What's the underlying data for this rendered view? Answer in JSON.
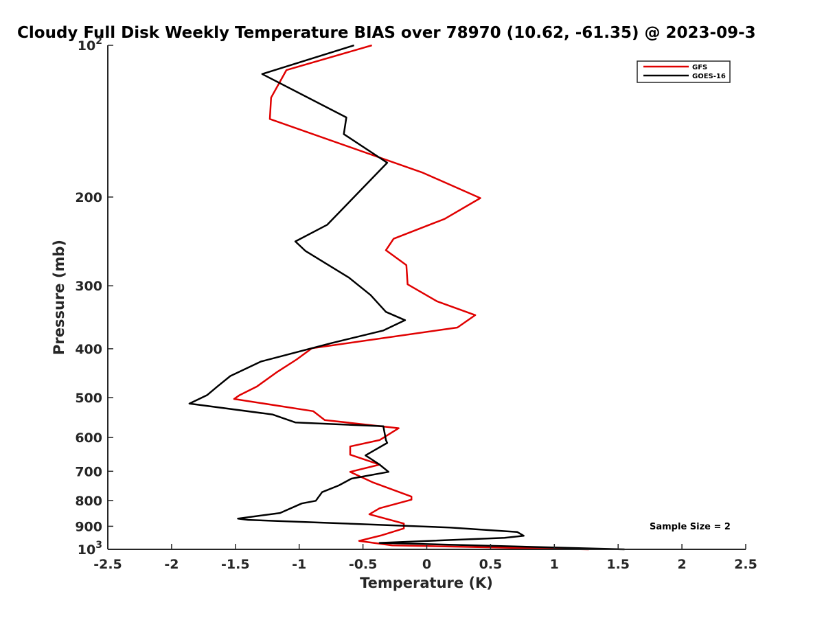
{
  "chart_data": {
    "type": "line",
    "title": "Cloudy Full Disk Weekly Temperature BIAS over 78970 (10.62, -61.35) @ 2023-09-3",
    "xlabel": "Temperature (K)",
    "ylabel": "Pressure (mb)",
    "xlim": [
      -2.5,
      2.5
    ],
    "ylim": [
      100,
      1000
    ],
    "y_scale": "log",
    "y_reversed": true,
    "x_ticks": [
      "-2.5",
      "-2",
      "-1.5",
      "-1",
      "-0.5",
      "0",
      "0.5",
      "1",
      "1.5",
      "2",
      "2.5"
    ],
    "y_ticks": [
      {
        "value": 100,
        "base": "10",
        "exp": "2"
      },
      {
        "value": 200,
        "label": "200"
      },
      {
        "value": 300,
        "label": "300"
      },
      {
        "value": 400,
        "label": "400"
      },
      {
        "value": 500,
        "label": "500"
      },
      {
        "value": 600,
        "label": "600"
      },
      {
        "value": 700,
        "label": "700"
      },
      {
        "value": 800,
        "label": "800"
      },
      {
        "value": 900,
        "label": "900"
      },
      {
        "value": 1000,
        "base": "10",
        "exp": "3"
      }
    ],
    "grid": false,
    "legend_position": "top-right",
    "annotation": "Sample Size = 2",
    "series": [
      {
        "name": "GFS",
        "color": "#e00000",
        "points": [
          [
            -0.43,
            100
          ],
          [
            -1.1,
            112
          ],
          [
            -1.22,
            127
          ],
          [
            -1.23,
            140
          ],
          [
            -0.03,
            179
          ],
          [
            0.42,
            201
          ],
          [
            0.14,
            221
          ],
          [
            -0.26,
            242
          ],
          [
            -0.32,
            255
          ],
          [
            -0.16,
            273
          ],
          [
            -0.15,
            298
          ],
          [
            0.08,
            322
          ],
          [
            0.38,
            343
          ],
          [
            0.24,
            363
          ],
          [
            -0.9,
            399
          ],
          [
            -1.02,
            420
          ],
          [
            -1.18,
            446
          ],
          [
            -1.33,
            475
          ],
          [
            -1.47,
            495
          ],
          [
            -1.51,
            503
          ],
          [
            -0.89,
            532
          ],
          [
            -0.8,
            554
          ],
          [
            -0.22,
            575
          ],
          [
            -0.37,
            607
          ],
          [
            -0.6,
            625
          ],
          [
            -0.6,
            649
          ],
          [
            -0.37,
            679
          ],
          [
            -0.6,
            702
          ],
          [
            -0.42,
            737
          ],
          [
            -0.12,
            786
          ],
          [
            -0.12,
            797
          ],
          [
            -0.37,
            829
          ],
          [
            -0.45,
            852
          ],
          [
            -0.18,
            889
          ],
          [
            -0.18,
            909
          ],
          [
            -0.36,
            939
          ],
          [
            -0.53,
            962
          ],
          [
            -0.27,
            982
          ],
          [
            1.27,
            1000
          ]
        ]
      },
      {
        "name": "GOES-16",
        "color": "#000000",
        "points": [
          [
            -0.57,
            100
          ],
          [
            -1.29,
            114
          ],
          [
            -0.63,
            139
          ],
          [
            -0.65,
            150
          ],
          [
            -0.31,
            171
          ],
          [
            -0.78,
            227
          ],
          [
            -1.03,
            245
          ],
          [
            -0.95,
            256
          ],
          [
            -0.61,
            289
          ],
          [
            -0.44,
            313
          ],
          [
            -0.32,
            338
          ],
          [
            -0.17,
            351
          ],
          [
            -0.34,
            368
          ],
          [
            -0.75,
            390
          ],
          [
            -1.3,
            424
          ],
          [
            -1.54,
            453
          ],
          [
            -1.64,
            475
          ],
          [
            -1.72,
            494
          ],
          [
            -1.86,
            514
          ],
          [
            -1.21,
            540
          ],
          [
            -1.03,
            560
          ],
          [
            -0.34,
            570
          ],
          [
            -0.32,
            607
          ],
          [
            -0.31,
            615
          ],
          [
            -0.41,
            636
          ],
          [
            -0.48,
            651
          ],
          [
            -0.44,
            661
          ],
          [
            -0.37,
            679
          ],
          [
            -0.3,
            702
          ],
          [
            -0.59,
            724
          ],
          [
            -0.69,
            747
          ],
          [
            -0.82,
            770
          ],
          [
            -0.87,
            801
          ],
          [
            -0.98,
            811
          ],
          [
            -1.15,
            847
          ],
          [
            -1.48,
            869
          ],
          [
            -1.4,
            874
          ],
          [
            0.18,
            905
          ],
          [
            0.71,
            924
          ],
          [
            0.76,
            940
          ],
          [
            0.61,
            949
          ],
          [
            -0.37,
            971
          ],
          [
            1.55,
            1000
          ]
        ]
      }
    ]
  }
}
